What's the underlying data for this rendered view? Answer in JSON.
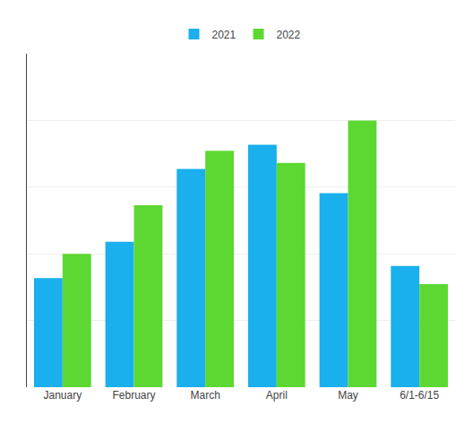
{
  "chart_data": {
    "type": "bar",
    "categories": [
      "January",
      "February",
      "March",
      "April",
      "May",
      "6/1-6/15"
    ],
    "series": [
      {
        "name": "2021",
        "color": "#1AAFED",
        "values": [
          18,
          24,
          36,
          40,
          32,
          20
        ]
      },
      {
        "name": "2022",
        "color": "#5DD832",
        "values": [
          22,
          30,
          39,
          37,
          44,
          17
        ]
      }
    ],
    "ylim": [
      0,
      55
    ],
    "yticks": [
      0,
      11,
      22,
      33,
      44,
      55
    ],
    "grid": true,
    "legend": "top",
    "tick_labels": "x"
  }
}
